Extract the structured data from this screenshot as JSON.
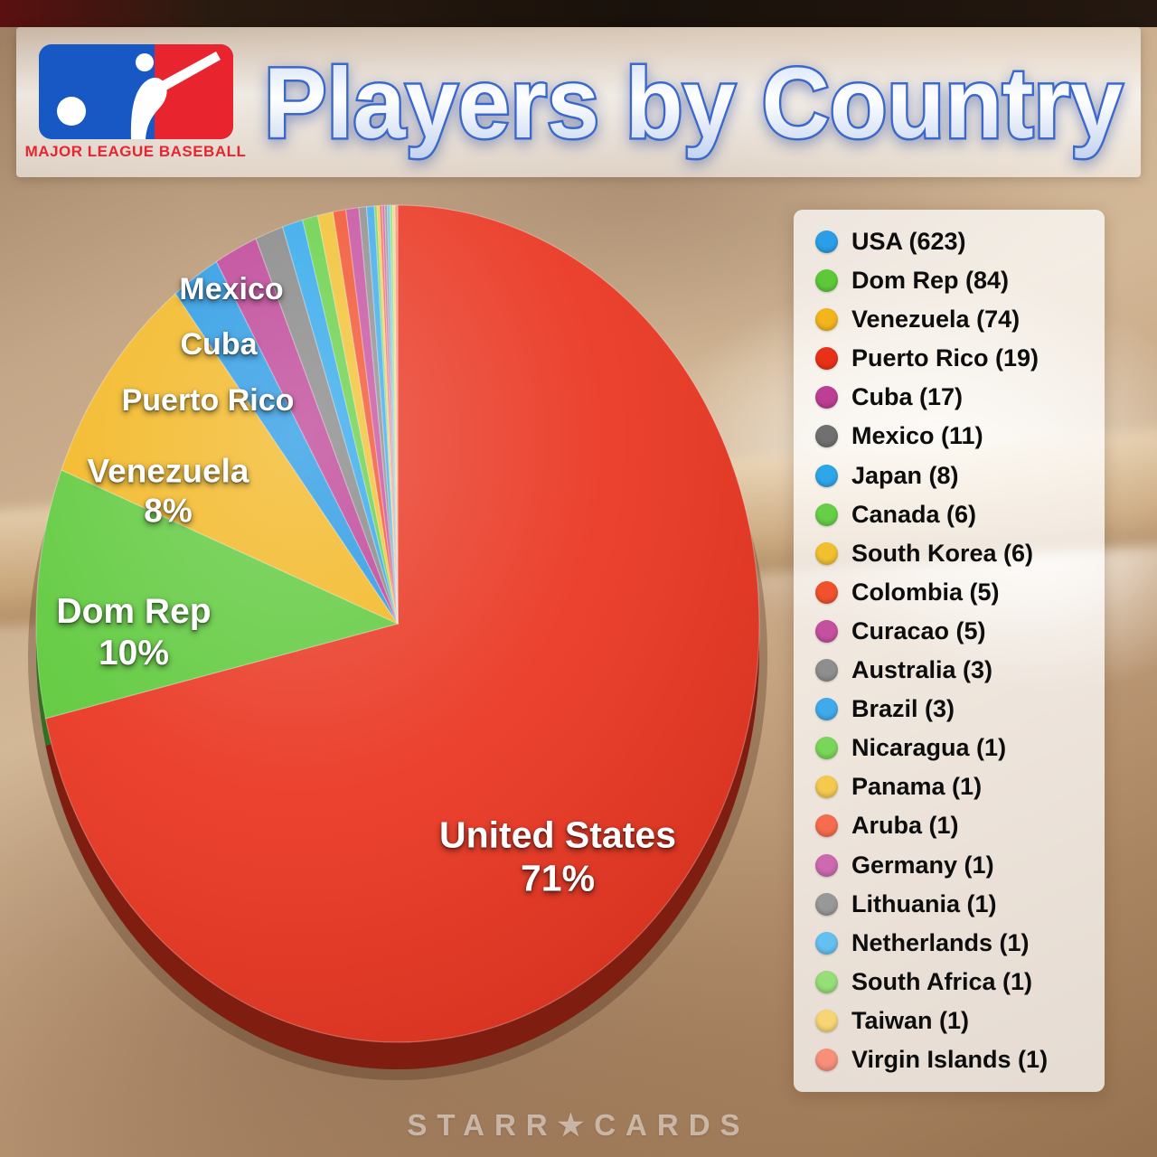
{
  "header": {
    "brand": "MAJOR LEAGUE BASEBALL",
    "title": "Players by Country"
  },
  "chart_data": {
    "type": "pie",
    "title": "Players by Country",
    "legend_position": "right",
    "series": [
      {
        "label": "USA",
        "value": 623,
        "pct": "71%",
        "legend_label": "USA (623)",
        "pie_color": "#e9341f",
        "dot_color": "#2a9fe8"
      },
      {
        "label": "Dom Rep",
        "value": 84,
        "pct": "10%",
        "legend_label": "Dom Rep (84)",
        "pie_color": "#5dc93a",
        "dot_color": "#5dc93a"
      },
      {
        "label": "Venezuela",
        "value": 74,
        "pct": "8%",
        "legend_label": "Venezuela (74)",
        "pie_color": "#f2b51d",
        "dot_color": "#f2b51d"
      },
      {
        "label": "Puerto Rico",
        "value": 19,
        "legend_label": "Puerto Rico (19)",
        "pie_color": "#2497e3",
        "dot_color": "#e93118"
      },
      {
        "label": "Cuba",
        "value": 17,
        "legend_label": "Cuba (17)",
        "pie_color": "#bc3f94",
        "dot_color": "#bc3f94"
      },
      {
        "label": "Mexico",
        "value": 11,
        "legend_label": "Mexico (11)",
        "pie_color": "#848484",
        "dot_color": "#707070"
      },
      {
        "label": "Japan",
        "value": 8,
        "legend_label": "Japan (8)",
        "pie_color": "#2ea6ea",
        "dot_color": "#2ea6ea"
      },
      {
        "label": "Canada",
        "value": 6,
        "legend_label": "Canada (6)",
        "pie_color": "#66cf46",
        "dot_color": "#66cf46"
      },
      {
        "label": "South Korea",
        "value": 6,
        "legend_label": "South Korea (6)",
        "pie_color": "#f1c02f",
        "dot_color": "#f1c02f"
      },
      {
        "label": "Colombia",
        "value": 5,
        "legend_label": "Colombia (5)",
        "pie_color": "#f1512d",
        "dot_color": "#f1512d"
      },
      {
        "label": "Curacao",
        "value": 5,
        "legend_label": "Curacao (5)",
        "pie_color": "#c5509f",
        "dot_color": "#c5509f"
      },
      {
        "label": "Australia",
        "value": 3,
        "legend_label": "Australia (3)",
        "pie_color": "#8e8e8e",
        "dot_color": "#8e8e8e"
      },
      {
        "label": "Brazil",
        "value": 3,
        "legend_label": "Brazil (3)",
        "pie_color": "#3fabeb",
        "dot_color": "#3fabeb"
      },
      {
        "label": "Nicaragua",
        "value": 1,
        "legend_label": "Nicaragua (1)",
        "pie_color": "#79d65a",
        "dot_color": "#79d65a"
      },
      {
        "label": "Panama",
        "value": 1,
        "legend_label": "Panama (1)",
        "pie_color": "#f4c94e",
        "dot_color": "#f4c94e"
      },
      {
        "label": "Aruba",
        "value": 1,
        "legend_label": "Aruba (1)",
        "pie_color": "#f56c4e",
        "dot_color": "#f56c4e"
      },
      {
        "label": "Germany",
        "value": 1,
        "legend_label": "Germany (1)",
        "pie_color": "#cc69af",
        "dot_color": "#cc69af"
      },
      {
        "label": "Lithuania",
        "value": 1,
        "legend_label": "Lithuania (1)",
        "pie_color": "#989898",
        "dot_color": "#989898"
      },
      {
        "label": "Netherlands",
        "value": 1,
        "legend_label": "Netherlands (1)",
        "pie_color": "#64c0f1",
        "dot_color": "#64c0f1"
      },
      {
        "label": "South Africa",
        "value": 1,
        "legend_label": "South Africa (1)",
        "pie_color": "#95de78",
        "dot_color": "#95de78"
      },
      {
        "label": "Taiwan",
        "value": 1,
        "legend_label": "Taiwan (1)",
        "pie_color": "#f7d575",
        "dot_color": "#f7d575"
      },
      {
        "label": "Virgin Islands",
        "value": 1,
        "legend_label": "Virgin Islands (1)",
        "pie_color": "#f88f79",
        "dot_color": "#f88f79"
      }
    ],
    "pie_labels": {
      "mexico": {
        "line1": "Mexico"
      },
      "cuba": {
        "line1": "Cuba"
      },
      "puerto_rico": {
        "line1": "Puerto Rico"
      },
      "venezuela": {
        "line1": "Venezuela",
        "line2": "8%"
      },
      "dom_rep": {
        "line1": "Dom Rep",
        "line2": "10%"
      },
      "united_states": {
        "line1": "United States",
        "line2": "71%"
      }
    }
  },
  "footer": {
    "watermark": "STARR★CARDS"
  }
}
